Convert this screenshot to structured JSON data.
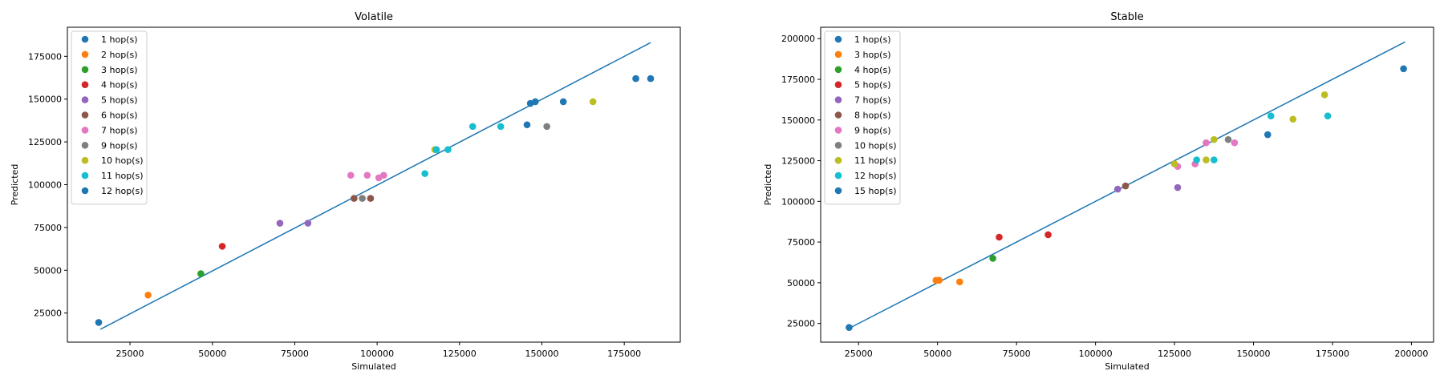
{
  "chart_data": [
    {
      "type": "scatter",
      "title": "Volatile",
      "xlabel": "Simulated",
      "ylabel": "Predicted",
      "xlim": [
        6000,
        192000
      ],
      "ylim": [
        8000,
        192000
      ],
      "xticks": [
        25000,
        50000,
        75000,
        100000,
        125000,
        150000,
        175000
      ],
      "yticks": [
        25000,
        50000,
        75000,
        100000,
        125000,
        150000,
        175000
      ],
      "xtick_labels": [
        "25000",
        "50000",
        "75000",
        "100000",
        "125000",
        "150000",
        "175000"
      ],
      "ytick_labels": [
        "25000",
        "50000",
        "75000",
        "100000",
        "125000",
        "150000",
        "175000"
      ],
      "legend_position": "upper-left",
      "series": [
        {
          "name": "1 hop(s)",
          "color": "#1f77b4",
          "points": [
            [
              15500,
              19500
            ]
          ]
        },
        {
          "name": "2 hop(s)",
          "color": "#ff7f0e",
          "points": [
            [
              30500,
              35500
            ]
          ]
        },
        {
          "name": "3 hop(s)",
          "color": "#2ca02c",
          "points": [
            [
              46500,
              48000
            ]
          ]
        },
        {
          "name": "4 hop(s)",
          "color": "#d62728",
          "points": [
            [
              53000,
              64000
            ]
          ]
        },
        {
          "name": "5 hop(s)",
          "color": "#9467bd",
          "points": [
            [
              70500,
              77500
            ],
            [
              79000,
              77500
            ]
          ]
        },
        {
          "name": "6 hop(s)",
          "color": "#8c564b",
          "points": [
            [
              93000,
              92000
            ],
            [
              98000,
              92000
            ]
          ]
        },
        {
          "name": "7 hop(s)",
          "color": "#e377c2",
          "points": [
            [
              92000,
              105500
            ],
            [
              97000,
              105500
            ],
            [
              100500,
              104000
            ],
            [
              102000,
              105500
            ]
          ]
        },
        {
          "name": "9 hop(s)",
          "color": "#7f7f7f",
          "points": [
            [
              95500,
              92000
            ],
            [
              151500,
              134000
            ]
          ]
        },
        {
          "name": "10 hop(s)",
          "color": "#bcbd22",
          "points": [
            [
              117500,
              120500
            ],
            [
              165500,
              148500
            ]
          ]
        },
        {
          "name": "11 hop(s)",
          "color": "#17becf",
          "points": [
            [
              114500,
              106500
            ],
            [
              118000,
              120500
            ],
            [
              121500,
              120500
            ],
            [
              129000,
              134000
            ],
            [
              137500,
              134000
            ]
          ]
        },
        {
          "name": "12 hop(s)",
          "color": "#1f77b4",
          "points": [
            [
              145500,
              135000
            ],
            [
              146500,
              147500
            ],
            [
              148000,
              148500
            ],
            [
              156500,
              148500
            ],
            [
              178500,
              162000
            ],
            [
              183000,
              162000
            ]
          ]
        }
      ],
      "fit_line": {
        "color": "#1f77b4",
        "points": [
          [
            16000,
            15500
          ],
          [
            183000,
            183000
          ]
        ]
      }
    },
    {
      "type": "scatter",
      "title": "Stable",
      "xlabel": "Simulated",
      "ylabel": "Predicted",
      "xlim": [
        13000,
        207000
      ],
      "ylim": [
        13500,
        207000
      ],
      "xticks": [
        25000,
        50000,
        75000,
        100000,
        125000,
        150000,
        175000,
        200000
      ],
      "yticks": [
        25000,
        50000,
        75000,
        100000,
        125000,
        150000,
        175000,
        200000
      ],
      "xtick_labels": [
        "25000",
        "50000",
        "75000",
        "100000",
        "125000",
        "150000",
        "175000",
        "200000"
      ],
      "ytick_labels": [
        "25000",
        "50000",
        "75000",
        "100000",
        "125000",
        "150000",
        "175000",
        "200000"
      ],
      "legend_position": "upper-left",
      "series": [
        {
          "name": "1 hop(s)",
          "color": "#1f77b4",
          "points": [
            [
              22000,
              22500
            ]
          ]
        },
        {
          "name": "3 hop(s)",
          "color": "#ff7f0e",
          "points": [
            [
              49500,
              51500
            ],
            [
              50500,
              51500
            ],
            [
              57000,
              50500
            ]
          ]
        },
        {
          "name": "4 hop(s)",
          "color": "#2ca02c",
          "points": [
            [
              67500,
              65000
            ]
          ]
        },
        {
          "name": "5 hop(s)",
          "color": "#d62728",
          "points": [
            [
              69500,
              78000
            ],
            [
              85000,
              79500
            ]
          ]
        },
        {
          "name": "7 hop(s)",
          "color": "#9467bd",
          "points": [
            [
              107000,
              107500
            ],
            [
              126000,
              108500
            ]
          ]
        },
        {
          "name": "8 hop(s)",
          "color": "#8c564b",
          "points": [
            [
              109500,
              109500
            ]
          ]
        },
        {
          "name": "9 hop(s)",
          "color": "#e377c2",
          "points": [
            [
              126000,
              121500
            ],
            [
              131500,
              123000
            ],
            [
              135000,
              136000
            ],
            [
              144000,
              136000
            ]
          ]
        },
        {
          "name": "10 hop(s)",
          "color": "#7f7f7f",
          "points": [
            [
              142000,
              138000
            ]
          ]
        },
        {
          "name": "11 hop(s)",
          "color": "#bcbd22",
          "points": [
            [
              125000,
              123000
            ],
            [
              135000,
              125500
            ],
            [
              137500,
              138000
            ],
            [
              162500,
              150500
            ],
            [
              172500,
              165500
            ]
          ]
        },
        {
          "name": "12 hop(s)",
          "color": "#17becf",
          "points": [
            [
              132000,
              125500
            ],
            [
              137500,
              125500
            ],
            [
              155500,
              152500
            ],
            [
              173500,
              152500
            ]
          ]
        },
        {
          "name": "15 hop(s)",
          "color": "#1f77b4",
          "points": [
            [
              154500,
              141000
            ],
            [
              197500,
              181500
            ]
          ]
        }
      ],
      "fit_line": {
        "color": "#1f77b4",
        "points": [
          [
            22000,
            22000
          ],
          [
            198000,
            198000
          ]
        ]
      }
    }
  ]
}
